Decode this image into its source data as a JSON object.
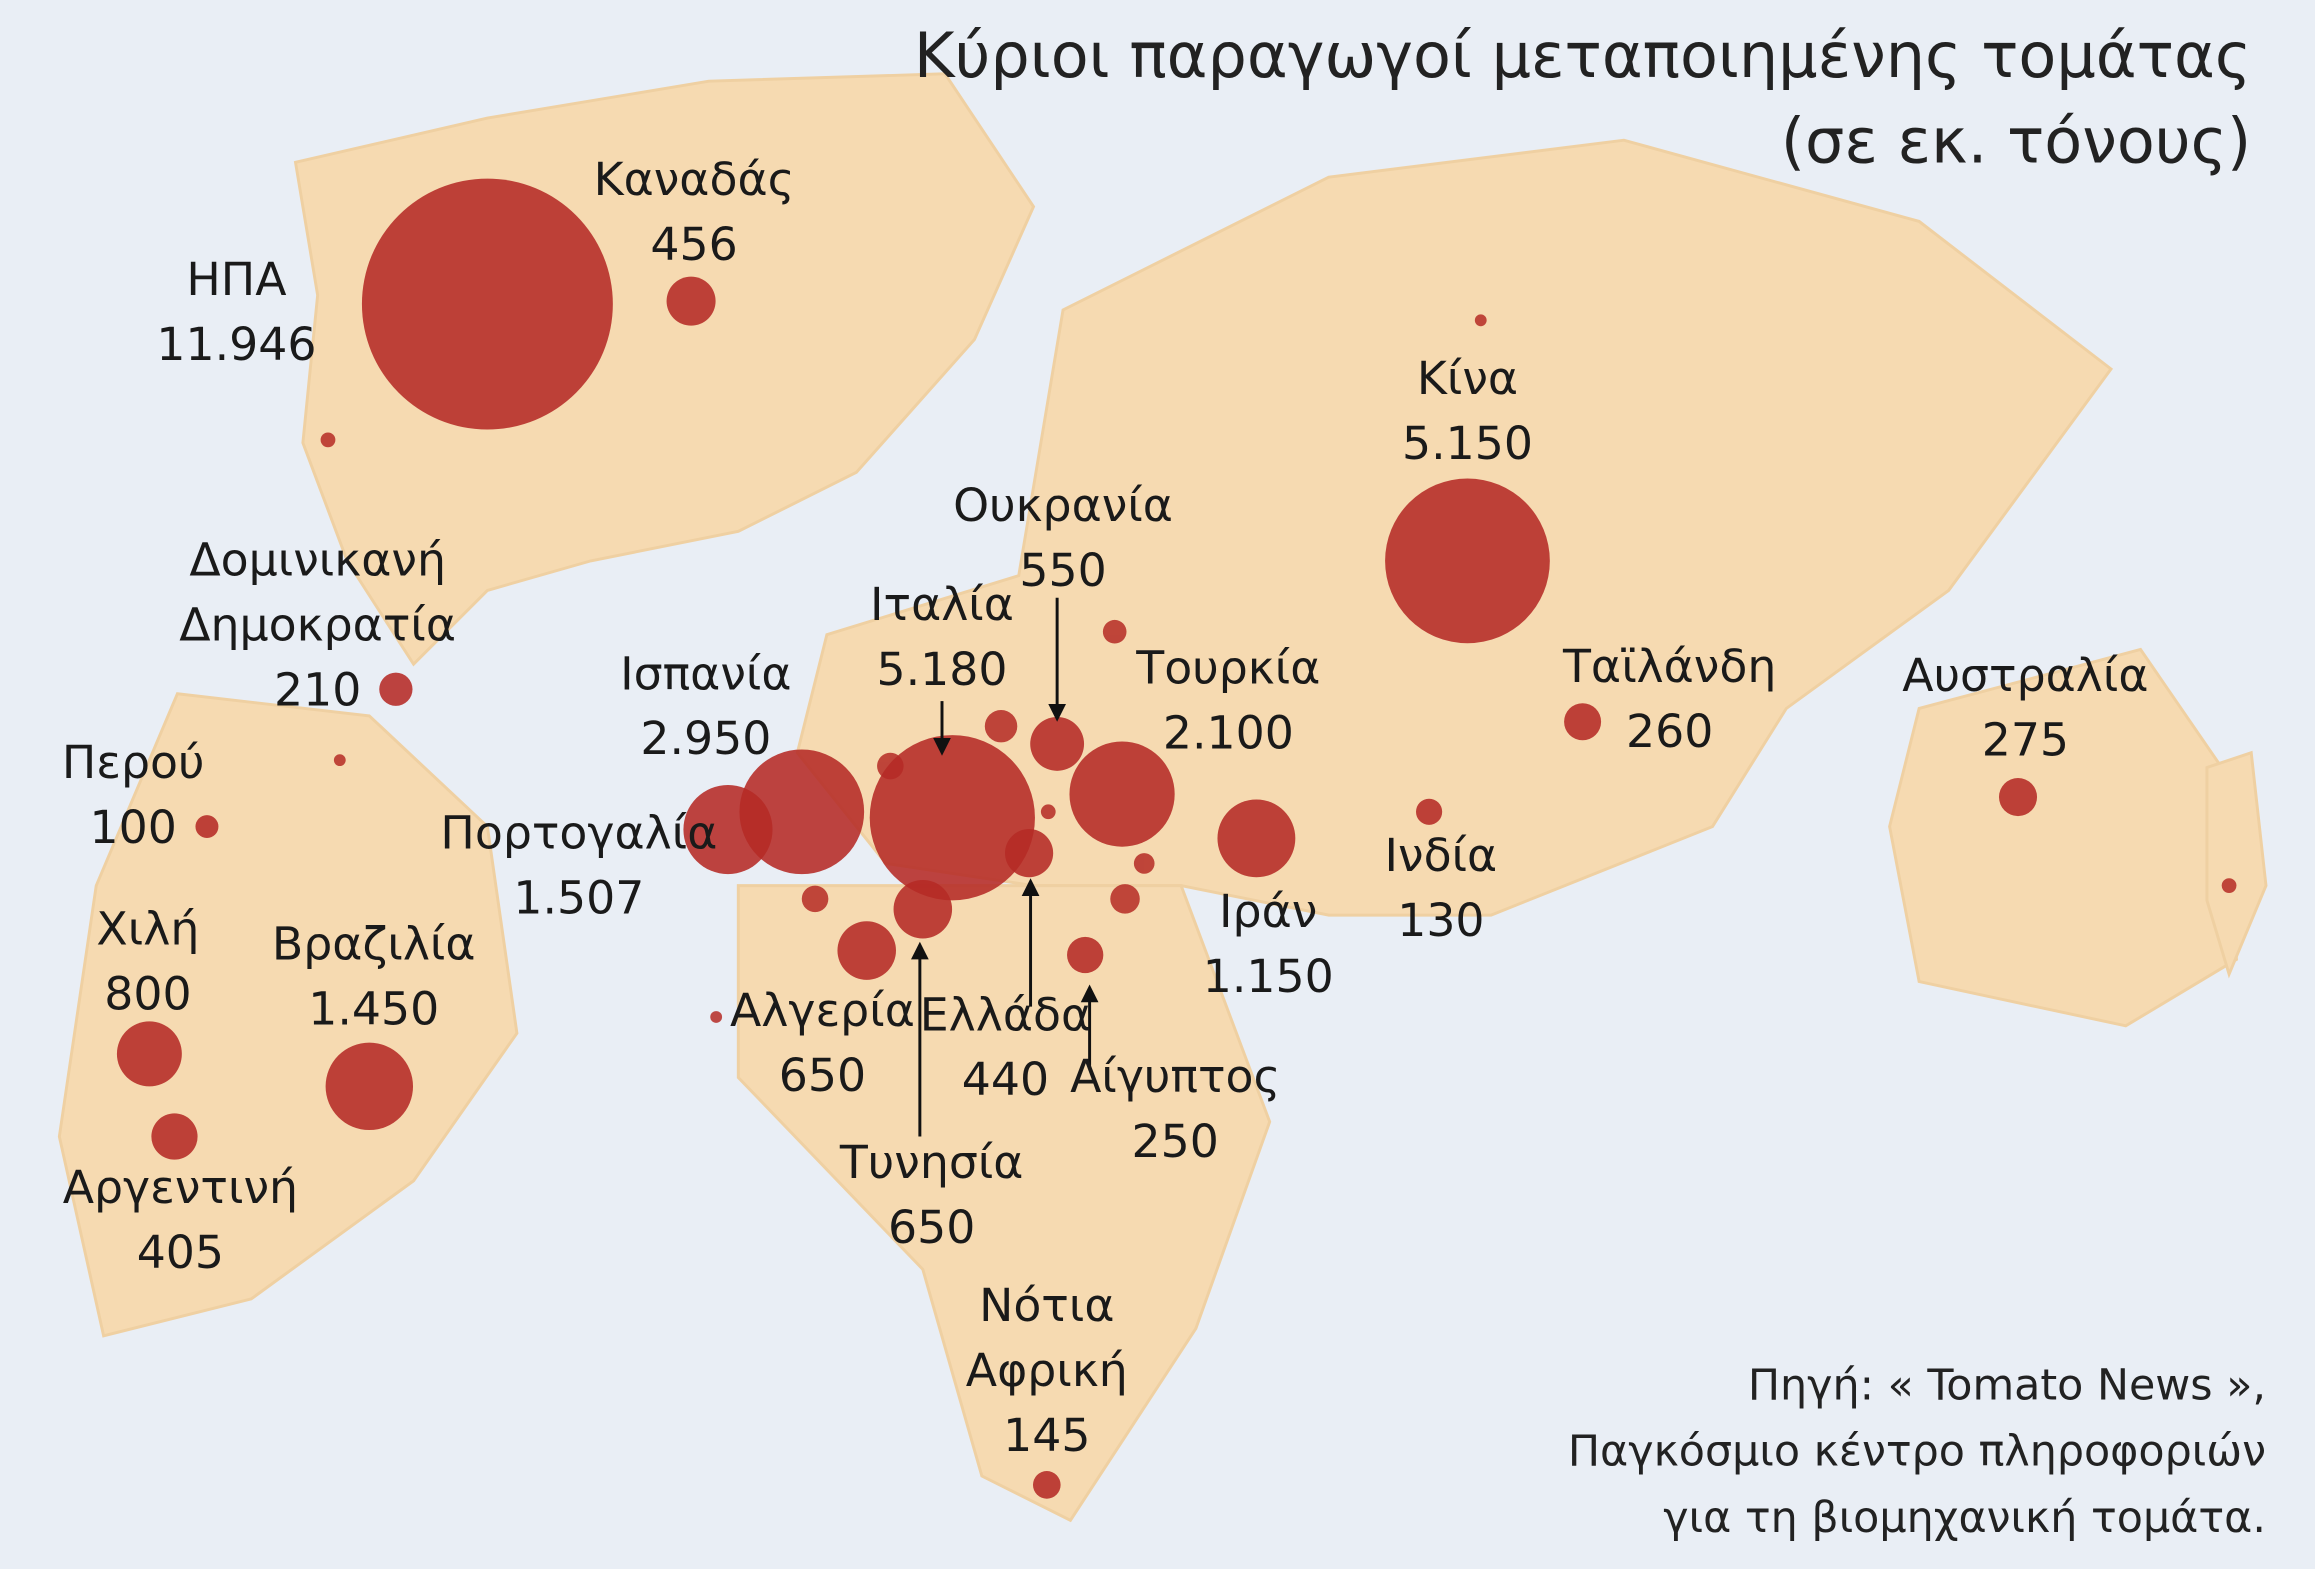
{
  "chart_data": {
    "type": "bubble-map",
    "title": "Κύριοι παραγωγοί μεταποιημένης τομάτας",
    "subtitle": "(σε εκ. τόνους)",
    "source": [
      "Πηγή: « Tomato News »,",
      "Παγκόσμιο κέντρο πληροφοριών",
      "για τη βιομηχανική τομάτα."
    ],
    "color": "#b52a25",
    "categories": [
      "ΗΠΑ",
      "Καναδάς",
      "Δομινικανή Δημοκρατία",
      "Περού",
      "Χιλή",
      "Αργεντινή",
      "Βραζιλία",
      "Ισπανία",
      "Πορτογαλία",
      "Ιταλία",
      "Ουκρανία",
      "Τουρκία",
      "Ιράν",
      "Αλγερία",
      "Τυνησία",
      "Ελλάδα",
      "Αίγυπτος",
      "Νότια Αφρική",
      "Κίνα",
      "Ινδία",
      "Ταϊλάνδη",
      "Αυστραλία"
    ],
    "values": [
      11946,
      456,
      210,
      100,
      800,
      405,
      1450,
      2950,
      1507,
      5180,
      550,
      2100,
      1150,
      650,
      650,
      440,
      250,
      145,
      5150,
      130,
      260,
      275
    ],
    "value_labels": [
      "11.946",
      "456",
      "210",
      "100",
      "800",
      "405",
      "1.450",
      "2.950",
      "1.507",
      "5.180",
      "550",
      "2.100",
      "1.150",
      "650",
      "650",
      "440",
      "250",
      "145",
      "5.150",
      "130",
      "260",
      "275"
    ]
  }
}
